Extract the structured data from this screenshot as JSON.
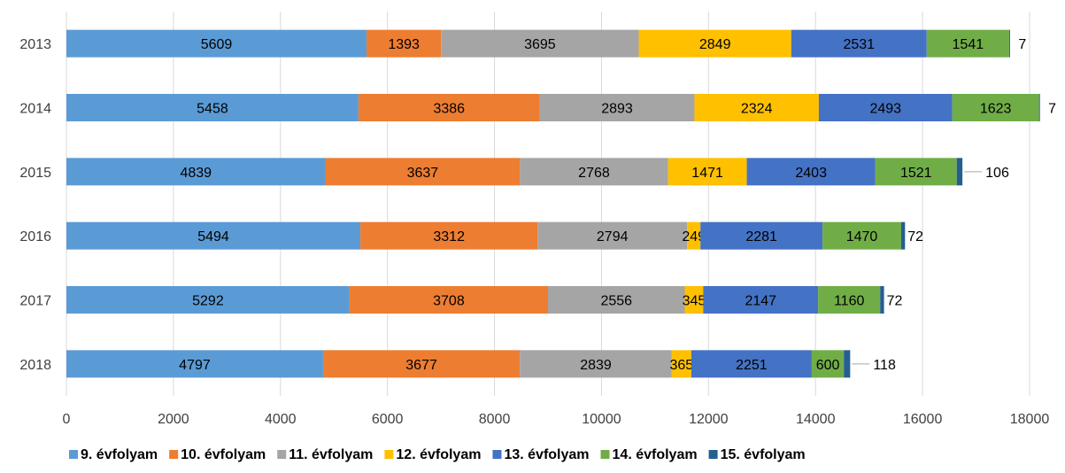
{
  "chart_data": {
    "type": "bar",
    "orientation": "horizontal",
    "stacked": true,
    "title": "",
    "xlabel": "",
    "ylabel": "",
    "xlim": [
      0,
      18000
    ],
    "x_ticks": [
      "0",
      "2000",
      "4000",
      "6000",
      "8000",
      "10000",
      "12000",
      "14000",
      "16000",
      "18000"
    ],
    "grid": true,
    "legend_position": "bottom",
    "categories": [
      "2013",
      "2014",
      "2015",
      "2016",
      "2017",
      "2018"
    ],
    "series": [
      {
        "name": "9. évfolyam",
        "color": "#5B9BD5",
        "values": [
          5609,
          5458,
          4839,
          5494,
          5292,
          4797
        ]
      },
      {
        "name": "10. évfolyam",
        "color": "#ED7D31",
        "values": [
          1393,
          3386,
          3637,
          3312,
          3708,
          3677
        ]
      },
      {
        "name": "11. évfolyam",
        "color": "#A5A5A5",
        "values": [
          3695,
          2893,
          2768,
          2794,
          2556,
          2839
        ]
      },
      {
        "name": "12. évfolyam",
        "color": "#FFC000",
        "values": [
          2849,
          2324,
          1471,
          249,
          345,
          365
        ]
      },
      {
        "name": "13. évfolyam",
        "color": "#4472C4",
        "values": [
          2531,
          2493,
          2403,
          2281,
          2147,
          2251
        ]
      },
      {
        "name": "14. évfolyam",
        "color": "#70AD47",
        "values": [
          1541,
          1623,
          1521,
          1470,
          1160,
          600
        ]
      },
      {
        "name": "15. évfolyam",
        "color": "#255E91",
        "values": [
          7,
          7,
          106,
          72,
          72,
          118
        ]
      }
    ]
  }
}
